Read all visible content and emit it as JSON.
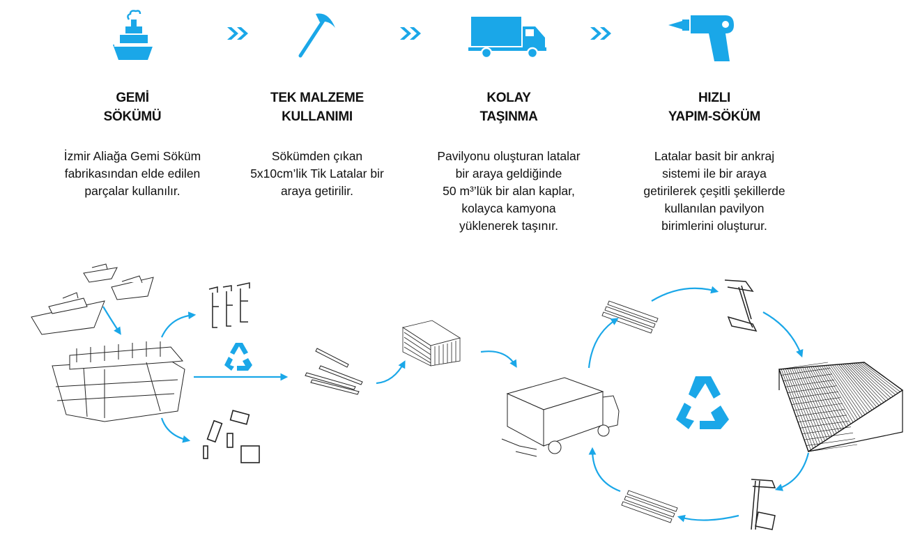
{
  "steps": [
    {
      "icon": "ship-icon",
      "title_line1": "GEMİ",
      "title_line2": "SÖKÜMÜ",
      "desc_lines": [
        "İzmir Aliağa Gemi Söküm",
        "fabrikasından elde edilen",
        "parçalar kullanılır."
      ]
    },
    {
      "icon": "pickaxe-icon",
      "title_line1": "TEK MALZEME",
      "title_line2": "KULLANIMI",
      "desc_lines": [
        "Sökümden çıkan",
        "5x10cm’lik Tik Latalar bir",
        "araya getirilir."
      ]
    },
    {
      "icon": "truck-icon",
      "title_line1": "KOLAY",
      "title_line2": "TAŞINMA",
      "desc_lines": [
        "Pavilyonu oluşturan latalar",
        "bir araya geldiğinde",
        "50 m³’lük bir alan kaplar,",
        "kolayca kamyona",
        "yüklenerek taşınır."
      ]
    },
    {
      "icon": "drill-icon",
      "title_line1": "HIZLI",
      "title_line2": "YAPIM-SÖKÜM",
      "desc_lines": [
        "Latalar basit bir ankraj",
        "sistemi ile bir araya",
        "getirilerek çeşitli şekillerde",
        "kullanılan pavilyon",
        "birimlerini oluşturur."
      ]
    }
  ],
  "colors": {
    "accent": "#1aa7e8",
    "text": "#111111",
    "line": "#222222"
  }
}
